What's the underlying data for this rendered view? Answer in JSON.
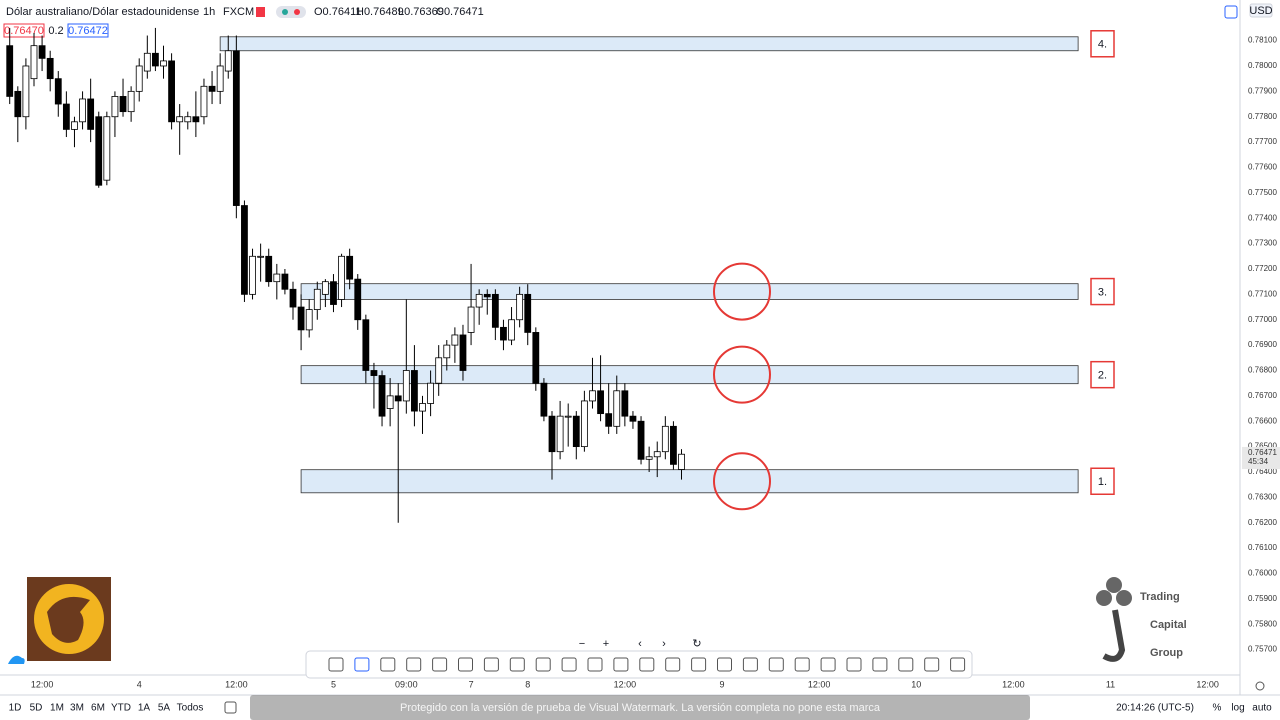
{
  "header": {
    "symbol": "Dólar australiano/Dólar estadounidense",
    "interval": "1h",
    "exchange": "FXCM",
    "open": "O0.76411",
    "high": "H0.76489",
    "low": "L0.76369",
    "close": "C0.76471",
    "bid": "0.76470",
    "spread": "0.2",
    "ask": "0.76472",
    "currency": "USD"
  },
  "chart_data": {
    "type": "candlestick",
    "open": [
      0.7808,
      0.779,
      0.778,
      0.7795,
      0.7808,
      0.7803,
      0.7795,
      0.7785,
      0.7775,
      0.7778,
      0.7787,
      0.778,
      0.7755,
      0.778,
      0.7788,
      0.7782,
      0.779,
      0.7798,
      0.7805,
      0.78,
      0.7802,
      0.7778,
      0.7778,
      0.778,
      0.778,
      0.7792,
      0.779,
      0.7798,
      0.7806,
      0.7745,
      0.771,
      0.7725,
      0.7725,
      0.7715,
      0.7718,
      0.7712,
      0.7705,
      0.7696,
      0.7704,
      0.771,
      0.7715,
      0.7708,
      0.7725,
      0.7716,
      0.77,
      0.768,
      0.7678,
      0.7665,
      0.767,
      0.7668,
      0.768,
      0.7664,
      0.7667,
      0.7675,
      0.7685,
      0.769,
      0.7694,
      0.7695,
      0.7705,
      0.771,
      0.771,
      0.7697,
      0.7692,
      0.77,
      0.771,
      0.7695,
      0.7675,
      0.7662,
      0.7648,
      0.7662,
      0.7662,
      0.765,
      0.7668,
      0.7672,
      0.7663,
      0.7658,
      0.7672,
      0.7662,
      0.766,
      0.7645,
      0.7646,
      0.7648,
      0.7658,
      0.7641
    ],
    "high": [
      0.7815,
      0.7792,
      0.7803,
      0.7813,
      0.7812,
      0.7806,
      0.7798,
      0.779,
      0.778,
      0.779,
      0.7795,
      0.7782,
      0.7782,
      0.779,
      0.7795,
      0.7792,
      0.7803,
      0.7812,
      0.7815,
      0.7808,
      0.7805,
      0.7785,
      0.7782,
      0.779,
      0.7795,
      0.7798,
      0.7805,
      0.7812,
      0.7812,
      0.7747,
      0.7728,
      0.773,
      0.7728,
      0.7722,
      0.772,
      0.7715,
      0.771,
      0.7708,
      0.7715,
      0.7716,
      0.7718,
      0.7726,
      0.7728,
      0.7718,
      0.7702,
      0.7683,
      0.768,
      0.7677,
      0.7675,
      0.7708,
      0.769,
      0.767,
      0.768,
      0.769,
      0.7692,
      0.7697,
      0.7698,
      0.7722,
      0.7712,
      0.7712,
      0.7712,
      0.77,
      0.7705,
      0.7713,
      0.7714,
      0.7697,
      0.7677,
      0.7664,
      0.7668,
      0.7667,
      0.7664,
      0.7672,
      0.7685,
      0.7686,
      0.7675,
      0.7678,
      0.7675,
      0.7664,
      0.7662,
      0.765,
      0.7652,
      0.7662,
      0.766,
      0.7649
    ],
    "low": [
      0.7785,
      0.777,
      0.7775,
      0.7792,
      0.7798,
      0.779,
      0.778,
      0.7772,
      0.7768,
      0.7775,
      0.777,
      0.7752,
      0.7753,
      0.7772,
      0.778,
      0.7778,
      0.7786,
      0.7795,
      0.7798,
      0.7795,
      0.7775,
      0.7765,
      0.7775,
      0.7772,
      0.7777,
      0.7785,
      0.7785,
      0.7795,
      0.774,
      0.7707,
      0.7708,
      0.7715,
      0.7713,
      0.7708,
      0.771,
      0.77,
      0.7688,
      0.7693,
      0.77,
      0.7705,
      0.7703,
      0.7705,
      0.7712,
      0.7696,
      0.7675,
      0.7665,
      0.7658,
      0.7658,
      0.762,
      0.7663,
      0.7658,
      0.7655,
      0.7662,
      0.767,
      0.768,
      0.7683,
      0.7676,
      0.769,
      0.7698,
      0.7702,
      0.7692,
      0.7688,
      0.769,
      0.7697,
      0.769,
      0.7672,
      0.766,
      0.7637,
      0.7645,
      0.765,
      0.7645,
      0.7648,
      0.7665,
      0.766,
      0.7655,
      0.7655,
      0.7658,
      0.7657,
      0.7643,
      0.764,
      0.7638,
      0.7645,
      0.7641,
      0.7637
    ],
    "close": [
      0.7788,
      0.778,
      0.78,
      0.7808,
      0.7803,
      0.7795,
      0.7785,
      0.7775,
      0.7778,
      0.7787,
      0.7775,
      0.7753,
      0.778,
      0.7788,
      0.7782,
      0.779,
      0.78,
      0.7805,
      0.78,
      0.7802,
      0.7778,
      0.778,
      0.778,
      0.7778,
      0.7792,
      0.779,
      0.78,
      0.7806,
      0.7745,
      0.771,
      0.7725,
      0.7725,
      0.7715,
      0.7718,
      0.7712,
      0.7705,
      0.7696,
      0.7704,
      0.7712,
      0.7715,
      0.7706,
      0.7725,
      0.7716,
      0.77,
      0.768,
      0.7678,
      0.7662,
      0.767,
      0.7668,
      0.768,
      0.7664,
      0.7667,
      0.7675,
      0.7685,
      0.769,
      0.7694,
      0.768,
      0.7705,
      0.771,
      0.7709,
      0.7697,
      0.7692,
      0.77,
      0.771,
      0.7695,
      0.7675,
      0.7662,
      0.7648,
      0.7662,
      0.7662,
      0.765,
      0.7668,
      0.7672,
      0.7663,
      0.7658,
      0.7672,
      0.7662,
      0.766,
      0.7645,
      0.7646,
      0.7648,
      0.7658,
      0.7643,
      0.7647
    ],
    "up_color": "#ffffff",
    "down_color": "#000000",
    "xlim": [
      -1.2,
      152
    ],
    "ylim": [
      0.756,
      0.7826
    ],
    "xticks": [
      {
        "value": 4,
        "label": "12:00"
      },
      {
        "value": 16,
        "label": "4"
      },
      {
        "value": 28,
        "label": "12:00"
      },
      {
        "value": 40,
        "label": "5"
      },
      {
        "value": 49,
        "label": "09:00"
      },
      {
        "value": 57,
        "label": "7"
      },
      {
        "value": 64,
        "label": "8"
      },
      {
        "value": 76,
        "label": "12:00"
      },
      {
        "value": 88,
        "label": "9"
      },
      {
        "value": 100,
        "label": "12:00"
      },
      {
        "value": 112,
        "label": "10"
      },
      {
        "value": 124,
        "label": "12:00"
      },
      {
        "value": 136,
        "label": "11"
      },
      {
        "value": 148,
        "label": "12:00"
      }
    ],
    "yticks": [
      {
        "value": 0.781,
        "label": "0.78100"
      },
      {
        "value": 0.78,
        "label": "0.78000"
      },
      {
        "value": 0.779,
        "label": "0.77900"
      },
      {
        "value": 0.778,
        "label": "0.77800"
      },
      {
        "value": 0.777,
        "label": "0.77700"
      },
      {
        "value": 0.776,
        "label": "0.77600"
      },
      {
        "value": 0.775,
        "label": "0.77500"
      },
      {
        "value": 0.774,
        "label": "0.77400"
      },
      {
        "value": 0.773,
        "label": "0.77300"
      },
      {
        "value": 0.772,
        "label": "0.77200"
      },
      {
        "value": 0.771,
        "label": "0.77100"
      },
      {
        "value": 0.77,
        "label": "0.77000"
      },
      {
        "value": 0.769,
        "label": "0.76900"
      },
      {
        "value": 0.768,
        "label": "0.76800"
      },
      {
        "value": 0.767,
        "label": "0.76700"
      },
      {
        "value": 0.766,
        "label": "0.76600"
      },
      {
        "value": 0.765,
        "label": "0.76500"
      },
      {
        "value": 0.764,
        "label": "0.76400"
      },
      {
        "value": 0.763,
        "label": "0.76300"
      },
      {
        "value": 0.762,
        "label": "0.76200"
      },
      {
        "value": 0.761,
        "label": "0.76100"
      },
      {
        "value": 0.76,
        "label": "0.76000"
      },
      {
        "value": 0.759,
        "label": "0.75900"
      },
      {
        "value": 0.758,
        "label": "0.75800"
      },
      {
        "value": 0.757,
        "label": "0.75700"
      }
    ],
    "grid": false,
    "last_price": {
      "value": 0.76471,
      "label": "0.76471"
    },
    "countdown": "45:34",
    "zones": [
      {
        "label": "4.",
        "top": 0.78115,
        "bottom": 0.7806,
        "start": 26,
        "end": 132
      },
      {
        "label": "3.",
        "top": 0.77142,
        "bottom": 0.7708,
        "start": 36,
        "end": 132
      },
      {
        "label": "2.",
        "top": 0.76819,
        "bottom": 0.76748,
        "start": 36,
        "end": 132
      },
      {
        "label": "1.",
        "top": 0.76409,
        "bottom": 0.76318,
        "start": 36,
        "end": 132
      }
    ],
    "zone_color": "#dceaf8"
  },
  "zoom_controls": [
    "−",
    "+",
    "‹",
    "›",
    "↻"
  ],
  "timeframes": [
    "1D",
    "5D",
    "1M",
    "3M",
    "6M",
    "YTD",
    "1A",
    "5A",
    "Todos"
  ],
  "clock": "20:14:26 (UTC-5)",
  "scale_options": [
    "%",
    "log",
    "auto"
  ],
  "brand": [
    "Trading",
    "Capital",
    "Group"
  ],
  "watermark": "Protegido con la versión de prueba de Visual Watermark. La versión completa no pone esta marca"
}
